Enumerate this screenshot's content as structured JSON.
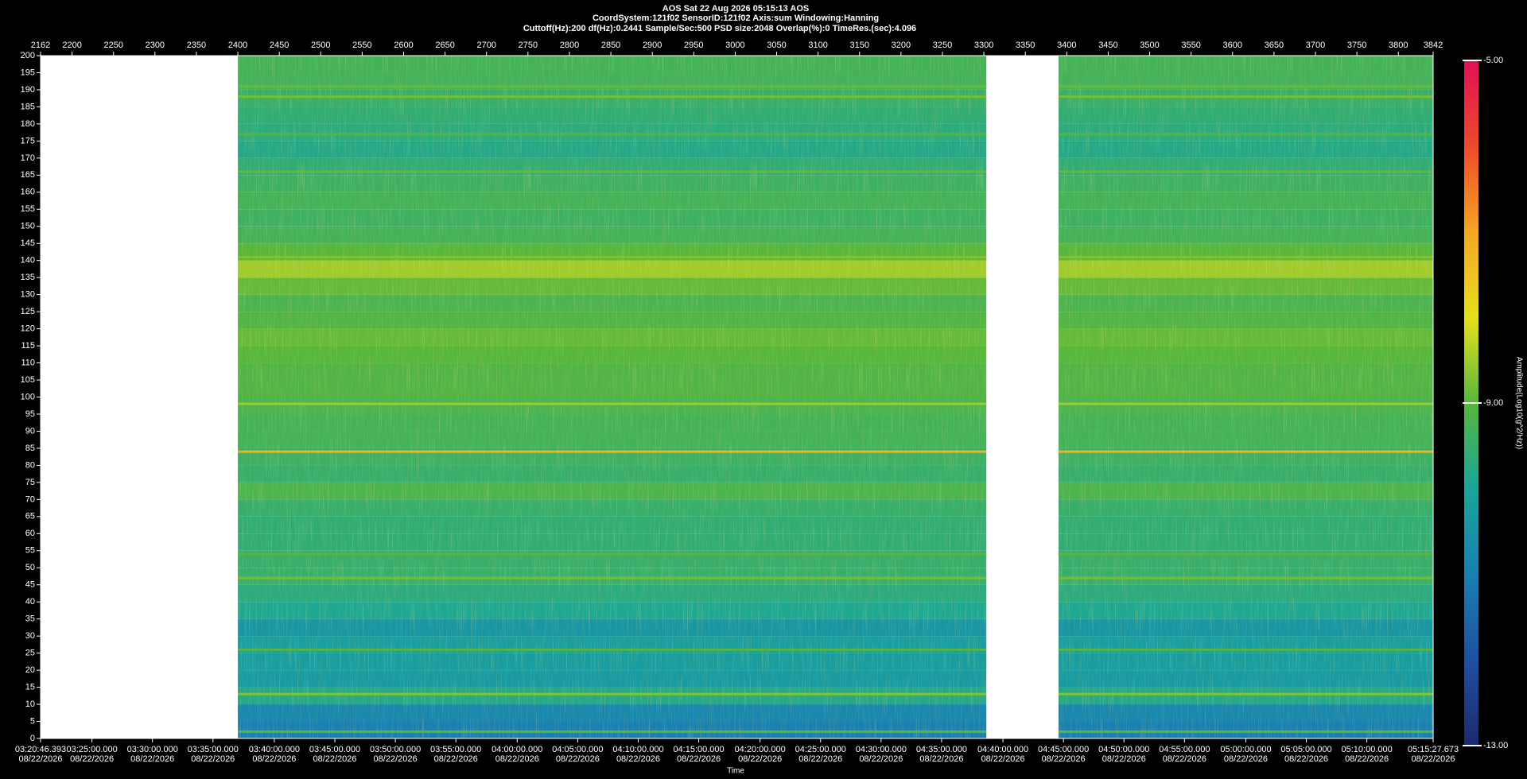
{
  "chart_data": {
    "type": "spectrogram",
    "title_lines": [
      "AOS  Sat 22 Aug 2026 05:15:13  AOS",
      "CoordSystem:121f02   SensorID:121f02   Axis:sum    Windowing:Hanning",
      "Cuttoff(Hz):200      df(Hz):0.2441      Sample/Sec:500      PSD size:2048      Overlap(%):0      TimeRes.(sec):4.096"
    ],
    "x_label": "Time",
    "colorbar_label": "Amplitude(Log10(g^2/Hz))",
    "xlim": [
      2162,
      3842
    ],
    "xticks": [
      2162,
      2200,
      2250,
      2300,
      2350,
      2400,
      2450,
      2500,
      2550,
      2600,
      2650,
      2700,
      2750,
      2800,
      2850,
      2900,
      2950,
      3000,
      3050,
      3100,
      3150,
      3200,
      3250,
      3300,
      3350,
      3400,
      3450,
      3500,
      3550,
      3600,
      3650,
      3700,
      3750,
      3800,
      3842
    ],
    "x2ticks": [
      {
        "value": 2162,
        "label": "03:20:46.393"
      },
      {
        "value": 2224,
        "label": "03:25:00.000"
      },
      {
        "value": 2297,
        "label": "03:30:00.000"
      },
      {
        "value": 2370,
        "label": "03:35:00.000"
      },
      {
        "value": 2444,
        "label": "03:40:00.000"
      },
      {
        "value": 2517,
        "label": "03:45:00.000"
      },
      {
        "value": 2590,
        "label": "03:50:00.000"
      },
      {
        "value": 2663,
        "label": "03:55:00.000"
      },
      {
        "value": 2737,
        "label": "04:00:00.000"
      },
      {
        "value": 2810,
        "label": "04:05:00.000"
      },
      {
        "value": 2883,
        "label": "04:10:00.000"
      },
      {
        "value": 2956,
        "label": "04:15:00.000"
      },
      {
        "value": 3030,
        "label": "04:20:00.000"
      },
      {
        "value": 3103,
        "label": "04:25:00.000"
      },
      {
        "value": 3176,
        "label": "04:30:00.000"
      },
      {
        "value": 3249,
        "label": "04:35:00.000"
      },
      {
        "value": 3323,
        "label": "04:40:00.000"
      },
      {
        "value": 3396,
        "label": "04:45:00.000"
      },
      {
        "value": 3469,
        "label": "04:50:00.000"
      },
      {
        "value": 3542,
        "label": "04:55:00.000"
      },
      {
        "value": 3616,
        "label": "05:00:00.000"
      },
      {
        "value": 3689,
        "label": "05:05:00.000"
      },
      {
        "value": 3762,
        "label": "05:10:00.000"
      },
      {
        "value": 3842,
        "label": "05:15:27.673"
      }
    ],
    "x2tick_dates": [
      "08/22/2026",
      "08/22/2026",
      "08/22/2026",
      "08/22/2026",
      "08/22/2026",
      "08/22/2026",
      "08/22/2026",
      "08/22/2026",
      "08/22/2026",
      "08/22/2026",
      "08/22/2026",
      "08/22/2026",
      "08/22/2026",
      "08/22/2026",
      "08/22/2026",
      "08/22/2026",
      "08/22/2026",
      "08/22/2026",
      "08/22/2026",
      "08/22/2026",
      "08/22/2026",
      "08/22/2026",
      "08/22/2026",
      "08/22/2026"
    ],
    "ylim": [
      0,
      200
    ],
    "yticks": [
      0,
      5,
      10,
      15,
      20,
      25,
      30,
      35,
      40,
      45,
      50,
      55,
      60,
      65,
      70,
      75,
      80,
      85,
      90,
      95,
      100,
      105,
      110,
      115,
      120,
      125,
      130,
      135,
      140,
      145,
      150,
      155,
      160,
      165,
      170,
      175,
      180,
      185,
      190,
      195,
      200
    ],
    "segments": [
      [
        2400,
        3303
      ],
      [
        3390,
        3842
      ]
    ],
    "freq_bins": [
      0,
      5,
      10,
      15,
      20,
      25,
      30,
      35,
      40,
      45,
      50,
      55,
      60,
      65,
      70,
      75,
      80,
      85,
      90,
      95,
      100,
      105,
      110,
      115,
      120,
      125,
      130,
      135,
      140,
      145,
      150,
      155,
      160,
      165,
      170,
      175,
      180,
      185,
      190,
      195,
      200
    ],
    "amplitude": [
      -11,
      -10.8,
      -9.8,
      -10.3,
      -10.2,
      -10.2,
      -10.4,
      -9.9,
      -9.7,
      -9.5,
      -9.5,
      -9.6,
      -9.6,
      -9.5,
      -9.2,
      -9.5,
      -9.4,
      -9.3,
      -9.3,
      -9.2,
      -9.1,
      -9.1,
      -9.0,
      -8.9,
      -9.1,
      -9.2,
      -8.9,
      -8.5,
      -9.0,
      -9.3,
      -9.4,
      -9.3,
      -9.4,
      -9.6,
      -9.8,
      -9.7,
      -9.6,
      -9.5,
      -9.3,
      -9.3
    ],
    "lines": {
      "freq": [
        2,
        13,
        26,
        47,
        54,
        84,
        98,
        141,
        166,
        177,
        188,
        191
      ],
      "amplitude": [
        -9,
        -8.7,
        -9,
        -8.8,
        -9,
        -7.2,
        -8.5,
        -8.7,
        -8.9,
        -9,
        -8.8,
        -8.9
      ]
    },
    "clim": [
      -13,
      -5
    ],
    "cticks": [
      {
        "value": -5,
        "label": "-5.00"
      },
      {
        "value": -9,
        "label": "-9.00"
      },
      {
        "value": -13,
        "label": "-13.00"
      }
    ],
    "colorscale": [
      "#1b2a6b",
      "#1f4fa0",
      "#1a7fb0",
      "#1aa59a",
      "#58b63c",
      "#e6e01e",
      "#f5a623",
      "#ec4a2c",
      "#e01058"
    ]
  }
}
